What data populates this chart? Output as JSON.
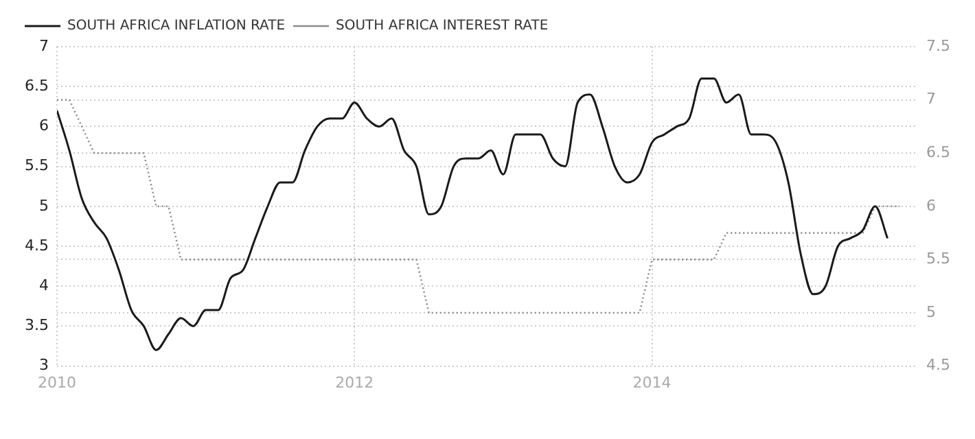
{
  "chart_data": {
    "type": "line",
    "legend": "top left",
    "grid": true,
    "x": [
      "2010-01",
      "2010-02",
      "2010-03",
      "2010-04",
      "2010-05",
      "2010-06",
      "2010-07",
      "2010-08",
      "2010-09",
      "2010-10",
      "2010-11",
      "2010-12",
      "2011-01",
      "2011-02",
      "2011-03",
      "2011-04",
      "2011-05",
      "2011-06",
      "2011-07",
      "2011-08",
      "2011-09",
      "2011-10",
      "2011-11",
      "2011-12",
      "2012-01",
      "2012-02",
      "2012-03",
      "2012-04",
      "2012-05",
      "2012-06",
      "2012-07",
      "2012-08",
      "2012-09",
      "2012-10",
      "2012-11",
      "2012-12",
      "2013-01",
      "2013-02",
      "2013-03",
      "2013-04",
      "2013-05",
      "2013-06",
      "2013-07",
      "2013-08",
      "2013-09",
      "2013-10",
      "2013-11",
      "2013-12",
      "2014-01",
      "2014-02",
      "2014-03",
      "2014-04",
      "2014-05",
      "2014-06",
      "2014-07",
      "2014-08",
      "2014-09",
      "2014-10",
      "2014-11",
      "2014-12",
      "2015-01",
      "2015-02",
      "2015-03",
      "2015-04",
      "2015-05",
      "2015-06",
      "2015-07",
      "2015-08"
    ],
    "xlim": [
      "2010-01",
      "2015-10-15"
    ],
    "xticks": [
      "2010",
      "2012",
      "2014"
    ],
    "ylim": [
      3,
      7
    ],
    "yticks": [
      3,
      3.5,
      4,
      4.5,
      5,
      5.5,
      6,
      6.5,
      7
    ],
    "y2lim": [
      4.5,
      7.5
    ],
    "y2ticks": [
      4.5,
      5,
      5.5,
      6,
      6.5,
      7,
      7.5
    ],
    "series": [
      {
        "name": "SOUTH AFRICA INFLATION RATE",
        "color": "#1a1a1a",
        "line_style": "solid",
        "values": [
          6.2,
          5.7,
          5.1,
          4.8,
          4.6,
          4.2,
          3.7,
          3.5,
          3.2,
          3.4,
          3.6,
          3.5,
          3.7,
          3.7,
          4.1,
          4.2,
          4.6,
          5.0,
          5.3,
          5.3,
          5.7,
          6.0,
          6.1,
          6.1,
          6.3,
          6.1,
          6.0,
          6.1,
          5.7,
          5.5,
          4.9,
          5.0,
          5.5,
          5.6,
          5.6,
          5.7,
          5.4,
          5.9,
          5.9,
          5.9,
          5.6,
          5.5,
          6.3,
          6.4,
          6.0,
          5.5,
          5.3,
          5.4,
          5.8,
          5.9,
          6.0,
          6.1,
          6.6,
          6.6,
          6.3,
          6.4,
          5.9,
          5.9,
          5.8,
          5.3,
          4.4,
          3.9,
          4.0,
          4.5,
          4.6,
          4.7,
          5.0,
          4.6
        ]
      },
      {
        "name": "SOUTH AFRICA INTEREST RATE",
        "color": "#8c8c8c",
        "line_style": "dotted",
        "axis": "y2",
        "x": [
          "2010-01",
          "2010-02",
          "2010-04",
          "2010-08",
          "2010-09",
          "2010-10",
          "2010-11",
          "2012-06",
          "2012-07",
          "2013-12",
          "2014-01",
          "2014-06",
          "2014-07",
          "2015-06",
          "2015-07",
          "2015-09"
        ],
        "values": [
          7,
          7,
          6.5,
          6.5,
          6,
          6,
          5.5,
          5.5,
          5,
          5,
          5.5,
          5.5,
          5.75,
          5.75,
          6,
          6
        ]
      }
    ]
  }
}
